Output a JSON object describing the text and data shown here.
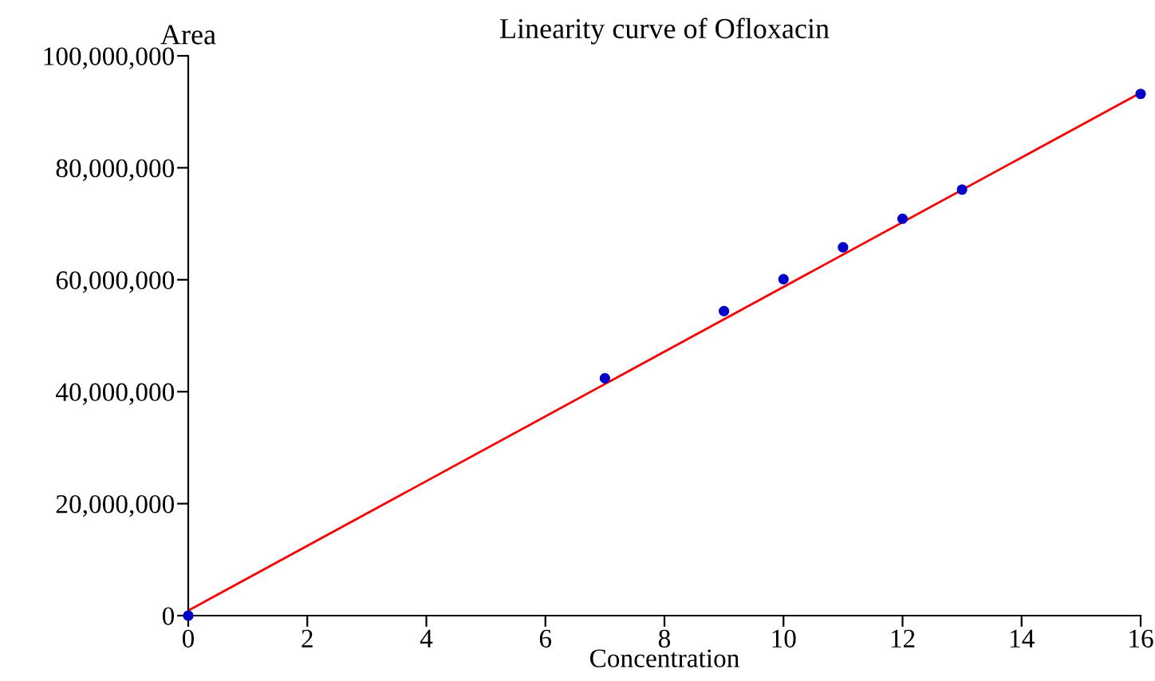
{
  "chart_data": {
    "type": "scatter",
    "title": "Linearity curve of Ofloxacin",
    "xlabel": "Concentration",
    "ylabel": "Area",
    "x": [
      0,
      7,
      9,
      10,
      11,
      12,
      13,
      16
    ],
    "series": [
      {
        "marker": "circle",
        "color": "#0000cc",
        "values": [
          0,
          42400000,
          54400000,
          60100000,
          65800000,
          70900000,
          76100000,
          93200000
        ]
      },
      {
        "type": "line",
        "color": "#ff0000",
        "x": [
          0,
          16
        ],
        "values": [
          900000,
          93400000
        ]
      }
    ],
    "xlim": [
      0,
      16
    ],
    "ylim": [
      0,
      100000000
    ],
    "xticks": [
      0,
      2,
      4,
      6,
      8,
      10,
      12,
      14,
      16
    ],
    "yticks": [
      0,
      {
        "value": 20000000,
        "label": "20,000,000"
      },
      {
        "value": 40000000,
        "label": "40,000,000"
      },
      {
        "value": 60000000,
        "label": "60,000,000"
      },
      {
        "value": 80000000,
        "label": "80,000,000"
      },
      {
        "value": 100000000,
        "label": "100,000,000"
      }
    ],
    "grid": false,
    "legend": false
  }
}
